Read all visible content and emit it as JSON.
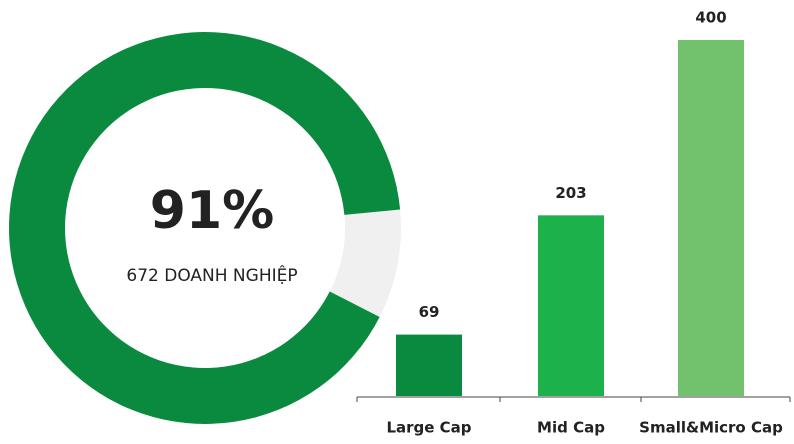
{
  "chart_data": [
    {
      "type": "donut",
      "values": [
        91,
        9
      ],
      "value_labels": [
        "91%",
        null
      ],
      "colors": [
        "#0a8a3f",
        "#f0f0f0"
      ],
      "subtitle": "672 DOANH NGHIỆP"
    },
    {
      "type": "bar",
      "categories": [
        "Large Cap",
        "Mid Cap",
        "Small&Micro Cap"
      ],
      "values": [
        69,
        203,
        400
      ],
      "colors": [
        "#0a8a3f",
        "#1db14b",
        "#72c26d"
      ],
      "ylim": [
        0,
        400
      ]
    }
  ]
}
